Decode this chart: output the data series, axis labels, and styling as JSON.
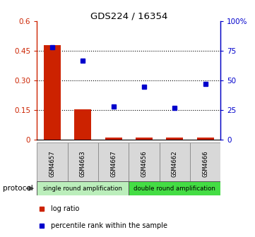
{
  "title": "GDS224 / 16354",
  "samples": [
    "GSM4657",
    "GSM4663",
    "GSM4667",
    "GSM4656",
    "GSM4662",
    "GSM4666"
  ],
  "log_ratio": [
    0.48,
    0.155,
    0.012,
    0.01,
    0.01,
    0.01
  ],
  "percentile_rank": [
    78,
    67,
    28,
    45,
    27,
    47
  ],
  "left_ylim": [
    0,
    0.6
  ],
  "right_ylim": [
    0,
    100
  ],
  "left_yticks": [
    0,
    0.15,
    0.3,
    0.45,
    0.6
  ],
  "left_yticklabels": [
    "0",
    "0.15",
    "0.30",
    "0.45",
    "0.6"
  ],
  "right_yticks": [
    0,
    25,
    50,
    75,
    100
  ],
  "right_yticklabels": [
    "0",
    "25",
    "50",
    "75",
    "100%"
  ],
  "hline_values": [
    0.15,
    0.3,
    0.45
  ],
  "protocol_groups": [
    {
      "label": "single round amplification",
      "n_samples": 3,
      "color": "#bbeebb"
    },
    {
      "label": "double round amplification",
      "n_samples": 3,
      "color": "#44dd44"
    }
  ],
  "bar_color": "#cc2200",
  "dot_color": "#0000cc",
  "bar_width": 0.55,
  "sample_box_color": "#d8d8d8",
  "protocol_label": "protocol",
  "legend_items": [
    {
      "label": "log ratio",
      "color": "#cc2200"
    },
    {
      "label": "percentile rank within the sample",
      "color": "#0000cc"
    }
  ]
}
